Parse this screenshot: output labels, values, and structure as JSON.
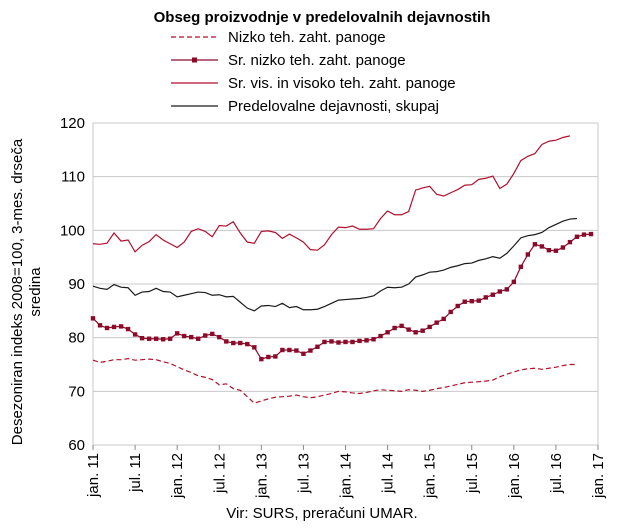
{
  "chart_data": {
    "type": "line",
    "title": "Obseg proizvodnje v predelovalnih dejavnostih",
    "ylabel_line1": "Desezoniran indeks 2008=100, 3-mes. drseča",
    "ylabel_line2": "sredina",
    "source": "Vir: SURS, preračuni UMAR.",
    "ylim": [
      60,
      120
    ],
    "yticks": [
      60,
      70,
      80,
      90,
      100,
      110,
      120
    ],
    "xticks": [
      "jan. 11",
      "jul. 11",
      "jan. 12",
      "jul. 12",
      "jan. 13",
      "jul. 13",
      "jan. 14",
      "jul. 14",
      "jan. 15",
      "jul. 15",
      "jan. 16",
      "jul. 16",
      "jan. 17"
    ],
    "x_start": "2011-01",
    "legend_position": "top",
    "grid": true,
    "series": [
      {
        "name": "Nizko teh. zaht. panoge",
        "color": "#b0102d",
        "style": "dashed",
        "values": [
          75.8,
          75.4,
          75.6,
          75.9,
          75.9,
          76.1,
          75.8,
          75.9,
          76.0,
          75.9,
          75.5,
          75.2,
          74.6,
          74.0,
          73.5,
          72.9,
          72.6,
          72.2,
          71.2,
          71.4,
          70.5,
          70.2,
          69.0,
          67.8,
          68.2,
          68.6,
          68.9,
          69.0,
          69.1,
          69.3,
          69.0,
          68.8,
          69.0,
          69.3,
          69.6,
          70.0,
          69.9,
          69.7,
          69.6,
          69.8,
          70.1,
          70.3,
          70.2,
          70.1,
          70.0,
          70.3,
          70.2,
          70.0,
          70.2,
          70.5,
          70.7,
          71.0,
          71.3,
          71.6,
          71.7,
          71.8,
          71.9,
          72.1,
          72.7,
          73.2,
          73.6,
          74.0,
          74.2,
          74.3,
          74.1,
          74.3,
          74.5,
          74.8,
          75.0,
          75.0
        ]
      },
      {
        "name": "Sr. nizko teh. zaht. panoge",
        "color": "#8b0a2a",
        "style": "markers",
        "values": [
          83.6,
          82.3,
          81.8,
          82.0,
          82.1,
          81.6,
          80.6,
          79.9,
          79.8,
          79.8,
          79.7,
          79.8,
          80.8,
          80.3,
          80.1,
          79.8,
          80.4,
          80.7,
          80.1,
          79.3,
          79.0,
          79.0,
          78.8,
          78.2,
          76.0,
          76.4,
          76.5,
          77.7,
          77.7,
          77.6,
          77.0,
          77.6,
          78.3,
          79.2,
          79.3,
          79.1,
          79.2,
          79.2,
          79.4,
          79.5,
          79.7,
          80.3,
          81.0,
          81.8,
          82.2,
          81.5,
          81.0,
          81.3,
          82.0,
          82.8,
          83.5,
          84.8,
          85.9,
          86.7,
          86.8,
          86.9,
          87.5,
          88.0,
          88.6,
          89.0,
          90.4,
          93.2,
          95.5,
          97.4,
          97.0,
          96.3,
          96.2,
          96.8,
          97.8,
          98.8,
          99.2,
          99.3
        ]
      },
      {
        "name": "Sr. vis. in visoko teh. zaht. panoge",
        "color": "#b0102d",
        "style": "solid",
        "values": [
          97.5,
          97.4,
          97.6,
          99.5,
          98.0,
          98.2,
          96.0,
          97.2,
          97.9,
          99.2,
          98.2,
          97.5,
          96.8,
          97.8,
          99.8,
          100.3,
          99.8,
          98.8,
          100.9,
          100.8,
          101.6,
          99.5,
          97.8,
          97.6,
          99.8,
          99.9,
          99.6,
          98.5,
          99.3,
          98.6,
          97.8,
          96.4,
          96.3,
          97.3,
          99.2,
          100.6,
          100.5,
          100.8,
          100.2,
          100.2,
          100.3,
          102.2,
          103.6,
          102.9,
          102.9,
          103.5,
          107.5,
          107.9,
          108.2,
          106.7,
          106.4,
          107.0,
          107.6,
          108.4,
          108.5,
          109.5,
          109.7,
          110.1,
          107.8,
          108.6,
          110.6,
          113.0,
          113.8,
          114.3,
          116.0,
          116.6,
          116.8,
          117.3,
          117.6
        ]
      },
      {
        "name": "Predelovalne dejavnosti, skupaj",
        "color": "#1a1a1a",
        "style": "solid",
        "values": [
          89.6,
          89.2,
          89.0,
          89.9,
          89.4,
          89.3,
          87.9,
          88.5,
          88.6,
          89.2,
          88.6,
          88.5,
          87.6,
          87.9,
          88.2,
          88.5,
          88.4,
          87.9,
          88.0,
          87.6,
          87.7,
          86.6,
          85.5,
          85.0,
          85.9,
          86.0,
          85.8,
          86.4,
          85.6,
          85.8,
          85.2,
          85.2,
          85.3,
          85.8,
          86.4,
          87.0,
          87.1,
          87.2,
          87.3,
          87.5,
          87.8,
          88.7,
          89.4,
          89.3,
          89.4,
          90.0,
          91.3,
          91.7,
          92.2,
          92.3,
          92.6,
          93.1,
          93.4,
          93.8,
          93.9,
          94.4,
          94.7,
          95.1,
          94.8,
          95.7,
          97.1,
          98.6,
          99.0,
          99.2,
          99.6,
          100.5,
          101.1,
          101.7,
          102.1,
          102.2
        ]
      }
    ]
  }
}
